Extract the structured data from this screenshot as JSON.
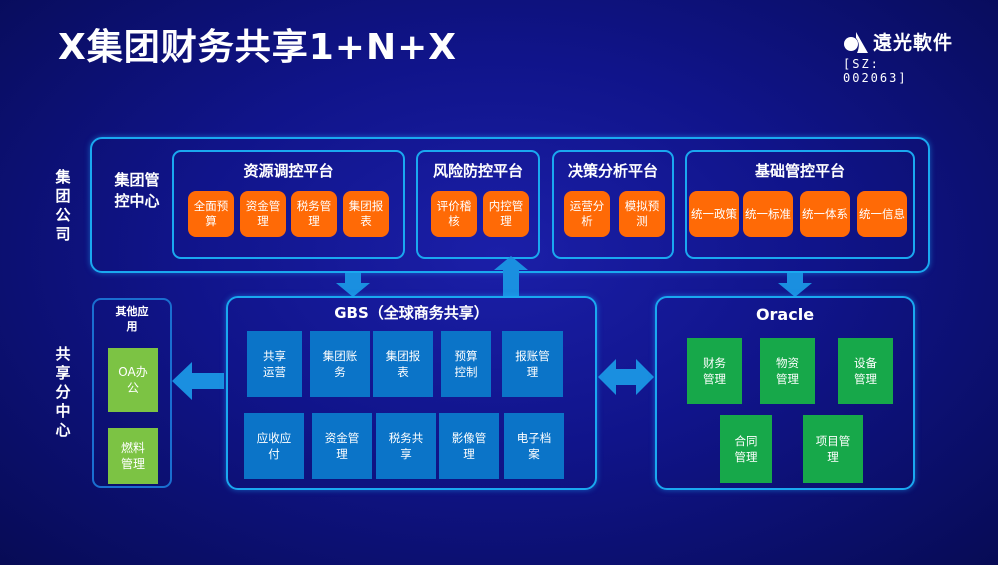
{
  "title": "X集团财务共享1+N+X",
  "logo": {
    "name": "遠光軟件",
    "code": "[SZ: 002063]"
  },
  "side_labels": {
    "group": "集团公司",
    "shared": "共享分中心"
  },
  "group_center": "集团管控中心",
  "platforms": [
    {
      "title": "资源调控平台",
      "items": [
        "全面预算",
        "资金管理",
        "税务管理",
        "集团报表"
      ]
    },
    {
      "title": "风险防控平台",
      "items": [
        "评价稽核",
        "内控管理"
      ]
    },
    {
      "title": "决策分析平台",
      "items": [
        "运营分析",
        "模拟预测"
      ]
    },
    {
      "title": "基础管控平台",
      "items": [
        "统一政策",
        "统一标准",
        "统一体系",
        "统一信息"
      ]
    }
  ],
  "other_apps": {
    "title": "其他应用",
    "items": [
      "OA办公",
      "燃料管理"
    ]
  },
  "gbs": {
    "title": "GBS（全球商务共享）",
    "row1": [
      "共享运营",
      "集团账务",
      "集团报表",
      "预算控制",
      "报账管理"
    ],
    "row2": [
      "应收应付",
      "资金管理",
      "税务共享",
      "影像管理",
      "电子档案"
    ]
  },
  "oracle": {
    "title": "Oracle",
    "row1": [
      "财务管理",
      "物资管理",
      "设备管理"
    ],
    "row2": [
      "合同管理",
      "项目管理"
    ]
  },
  "colors": {
    "orange": "#ff6a06",
    "blue": "#0b74c8",
    "green": "#17a84a",
    "lime": "#7cc344",
    "border": "#1aa8f0"
  }
}
